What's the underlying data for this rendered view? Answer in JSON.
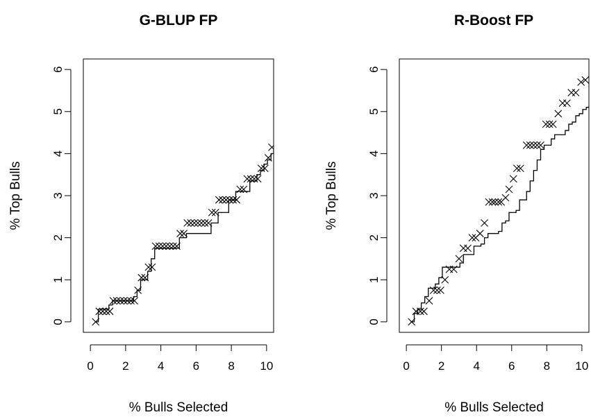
{
  "chart_data": [
    {
      "type": "line",
      "title": "G-BLUP FP",
      "xlabel": "% Bulls Selected",
      "ylabel": "% Top Bulls",
      "xlim": [
        -0.4,
        10.4
      ],
      "ylim": [
        -0.25,
        6.25
      ],
      "xticks": [
        "0",
        "2",
        "4",
        "6",
        "8",
        "10"
      ],
      "yticks": [
        "0",
        "1",
        "2",
        "3",
        "4",
        "5",
        "6"
      ],
      "grid": false,
      "legend": "none",
      "series": [
        {
          "style": "step-line",
          "x": [
            0.25,
            0.45,
            0.65,
            0.85,
            1.05,
            1.25,
            1.45,
            1.65,
            1.85,
            2.05,
            2.25,
            2.45,
            2.65,
            2.85,
            3.05,
            3.25,
            3.45,
            3.65,
            3.85,
            4.05,
            4.25,
            4.45,
            4.65,
            4.85,
            5.05,
            5.25,
            5.45,
            5.65,
            5.85,
            6.05,
            6.25,
            6.45,
            6.65,
            6.85,
            7.05,
            7.25,
            7.45,
            7.65,
            7.85,
            8.05,
            8.25,
            8.45,
            8.65,
            8.85,
            9.05,
            9.25,
            9.45,
            9.65,
            9.85,
            10.05,
            10.25,
            10.4
          ],
          "y": [
            0.0,
            0.3,
            0.3,
            0.3,
            0.4,
            0.5,
            0.5,
            0.5,
            0.5,
            0.5,
            0.5,
            0.6,
            0.75,
            1.0,
            1.0,
            1.2,
            1.5,
            1.75,
            1.75,
            1.75,
            1.75,
            1.75,
            1.75,
            1.75,
            2.0,
            2.0,
            2.1,
            2.1,
            2.1,
            2.1,
            2.1,
            2.1,
            2.1,
            2.35,
            2.35,
            2.6,
            2.6,
            2.6,
            2.9,
            2.9,
            3.1,
            3.1,
            3.1,
            3.1,
            3.35,
            3.35,
            3.5,
            3.6,
            3.75,
            3.85,
            4.0,
            4.1
          ]
        },
        {
          "style": "x-markers",
          "x": [
            0.3,
            0.5,
            0.7,
            0.9,
            1.1,
            1.3,
            1.5,
            1.7,
            1.9,
            2.1,
            2.3,
            2.5,
            2.7,
            2.9,
            3.1,
            3.3,
            3.5,
            3.7,
            3.9,
            4.1,
            4.3,
            4.5,
            4.7,
            4.9,
            5.1,
            5.3,
            5.5,
            5.7,
            5.9,
            6.1,
            6.3,
            6.5,
            6.7,
            6.9,
            7.1,
            7.3,
            7.5,
            7.7,
            7.9,
            8.1,
            8.3,
            8.5,
            8.7,
            8.9,
            9.1,
            9.3,
            9.5,
            9.7,
            9.9,
            10.1,
            10.3
          ],
          "y": [
            0.0,
            0.25,
            0.25,
            0.25,
            0.25,
            0.5,
            0.5,
            0.5,
            0.5,
            0.5,
            0.5,
            0.5,
            0.75,
            1.05,
            1.05,
            1.3,
            1.3,
            1.8,
            1.8,
            1.8,
            1.8,
            1.8,
            1.8,
            1.8,
            2.1,
            2.1,
            2.35,
            2.35,
            2.35,
            2.35,
            2.35,
            2.35,
            2.35,
            2.6,
            2.6,
            2.9,
            2.9,
            2.9,
            2.9,
            2.9,
            2.9,
            3.15,
            3.15,
            3.4,
            3.4,
            3.4,
            3.4,
            3.65,
            3.65,
            3.9,
            4.15
          ]
        }
      ]
    },
    {
      "type": "line",
      "title": "R-Boost FP",
      "xlabel": "% Bulls Selected",
      "ylabel": "% Top Bulls",
      "xlim": [
        -0.4,
        10.4
      ],
      "ylim": [
        -0.25,
        6.25
      ],
      "xticks": [
        "0",
        "2",
        "4",
        "6",
        "8",
        "10"
      ],
      "yticks": [
        "0",
        "1",
        "2",
        "3",
        "4",
        "5",
        "6"
      ],
      "grid": false,
      "legend": "none",
      "series": [
        {
          "style": "step-line",
          "x": [
            0.25,
            0.45,
            0.65,
            0.85,
            1.05,
            1.25,
            1.45,
            1.65,
            1.85,
            2.05,
            2.25,
            2.45,
            2.65,
            2.85,
            3.05,
            3.25,
            3.45,
            3.65,
            3.85,
            4.05,
            4.25,
            4.45,
            4.65,
            4.85,
            5.05,
            5.25,
            5.45,
            5.65,
            5.85,
            6.05,
            6.25,
            6.45,
            6.65,
            6.85,
            7.05,
            7.25,
            7.45,
            7.65,
            7.85,
            8.05,
            8.25,
            8.45,
            8.65,
            8.85,
            9.05,
            9.25,
            9.45,
            9.65,
            9.85,
            10.05,
            10.25,
            10.4
          ],
          "y": [
            0.0,
            0.2,
            0.3,
            0.45,
            0.6,
            0.8,
            0.8,
            0.9,
            1.05,
            1.3,
            1.3,
            1.3,
            1.3,
            1.3,
            1.4,
            1.6,
            1.6,
            1.6,
            1.8,
            1.8,
            1.85,
            2.0,
            2.1,
            2.1,
            2.1,
            2.15,
            2.35,
            2.4,
            2.6,
            2.6,
            2.65,
            2.9,
            2.9,
            3.1,
            3.35,
            3.6,
            3.85,
            4.1,
            4.2,
            4.2,
            4.35,
            4.45,
            4.45,
            4.45,
            4.55,
            4.7,
            4.75,
            4.9,
            4.95,
            5.05,
            5.1,
            5.15
          ]
        },
        {
          "style": "x-markers",
          "x": [
            0.3,
            0.55,
            0.8,
            1.0,
            1.3,
            1.55,
            1.75,
            1.95,
            2.2,
            2.45,
            2.7,
            3.0,
            3.25,
            3.5,
            3.75,
            3.95,
            4.2,
            4.45,
            4.7,
            4.9,
            5.05,
            5.25,
            5.4,
            5.65,
            5.85,
            6.1,
            6.3,
            6.5,
            6.85,
            7.05,
            7.25,
            7.45,
            7.65,
            7.95,
            8.15,
            8.35,
            8.65,
            8.9,
            9.15,
            9.4,
            9.65,
            9.95,
            10.2
          ],
          "y": [
            0.0,
            0.25,
            0.25,
            0.25,
            0.5,
            0.75,
            0.75,
            0.75,
            1.0,
            1.25,
            1.25,
            1.5,
            1.75,
            1.75,
            2.0,
            2.0,
            2.1,
            2.35,
            2.85,
            2.85,
            2.85,
            2.85,
            2.85,
            2.95,
            3.15,
            3.4,
            3.65,
            3.65,
            4.2,
            4.2,
            4.2,
            4.2,
            4.2,
            4.7,
            4.7,
            4.7,
            4.95,
            5.2,
            5.2,
            5.45,
            5.45,
            5.7,
            5.75
          ]
        }
      ]
    }
  ]
}
